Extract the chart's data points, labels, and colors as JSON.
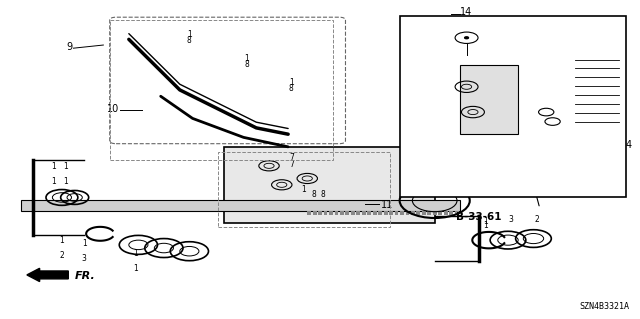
{
  "bg_color": "#ffffff",
  "fig_width": 6.4,
  "fig_height": 3.19,
  "dpi": 100,
  "diagram_code": "SZN4B3321A",
  "ref_code": "B-33-61",
  "direction_label": "FR."
}
